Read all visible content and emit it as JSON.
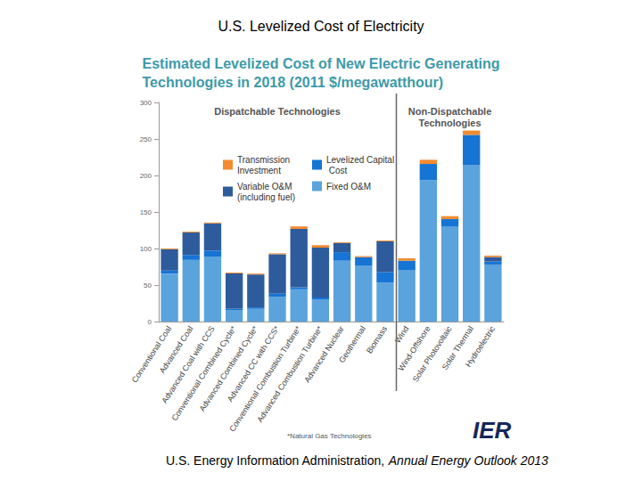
{
  "chart_data": {
    "type": "bar",
    "title": "U.S. Levelized Cost of Electricity",
    "subtitle": "Estimated Levelized Cost of New Electric Generating\nTechnologies in 2018 (2011 $/megawatthour)",
    "categories": [
      "Conventional Coal",
      "Advanced Coal",
      "Advanced Coal with CCS",
      "Conventional Combined Cycle*",
      "Advanced Combined Cycle*",
      "Advanced CC with CCS*",
      "Conventional Combustion Turbine*",
      "Advanced Combustion Turbine*",
      "Advanced Nuclear",
      "Geothermal",
      "Biomass",
      "Wind",
      "Wind-Offshore",
      "Solar Photovoltaic",
      "Solar Thermal",
      "Hydroelectric"
    ],
    "series": [
      {
        "name": "Fixed O&M",
        "color": "#5ba3dc",
        "values": [
          65.7,
          84.4,
          88.4,
          15.8,
          17.4,
          34.0,
          44.2,
          30.4,
          83.4,
          76.2,
          53.2,
          70.3,
          193.4,
          130.4,
          214.2,
          78.1
        ]
      },
      {
        "name": "Levelized Capital Cost",
        "color": "#1574d4",
        "values": [
          4.1,
          6.8,
          8.8,
          1.7,
          2.0,
          4.1,
          2.7,
          2.6,
          11.6,
          12.0,
          14.3,
          13.1,
          22.4,
          9.9,
          41.4,
          4.1
        ]
      },
      {
        "name": "Variable O&M (including fuel)",
        "color": "#2e5b9c",
        "values": [
          29.2,
          30.7,
          37.2,
          48.4,
          45.0,
          54.1,
          80.0,
          68.2,
          12.3,
          0,
          42.3,
          0,
          0,
          0,
          0,
          6.1
        ]
      },
      {
        "name": "Transmission Investment",
        "color": "#f28b30",
        "values": [
          1.2,
          1.2,
          1.2,
          1.2,
          1.2,
          1.2,
          3.4,
          3.4,
          1.1,
          1.4,
          1.2,
          3.2,
          5.7,
          4.0,
          5.9,
          2.0
        ]
      }
    ],
    "ylim": [
      0,
      300
    ],
    "yticks": [
      0,
      50,
      100,
      150,
      200,
      250,
      300
    ],
    "grid": false,
    "stacked": true,
    "legend": "upper left",
    "groups": [
      {
        "label": "Dispatchable Technologies",
        "count": 11
      },
      {
        "label": "Non-Dispatchable\nTechnologies",
        "count": 5
      }
    ],
    "footnote": "*Natural Gas Technologies",
    "logo": "IER",
    "source": [
      "U.S. Energy Information Administration,",
      "Annual Energy Outlook 2013"
    ]
  }
}
